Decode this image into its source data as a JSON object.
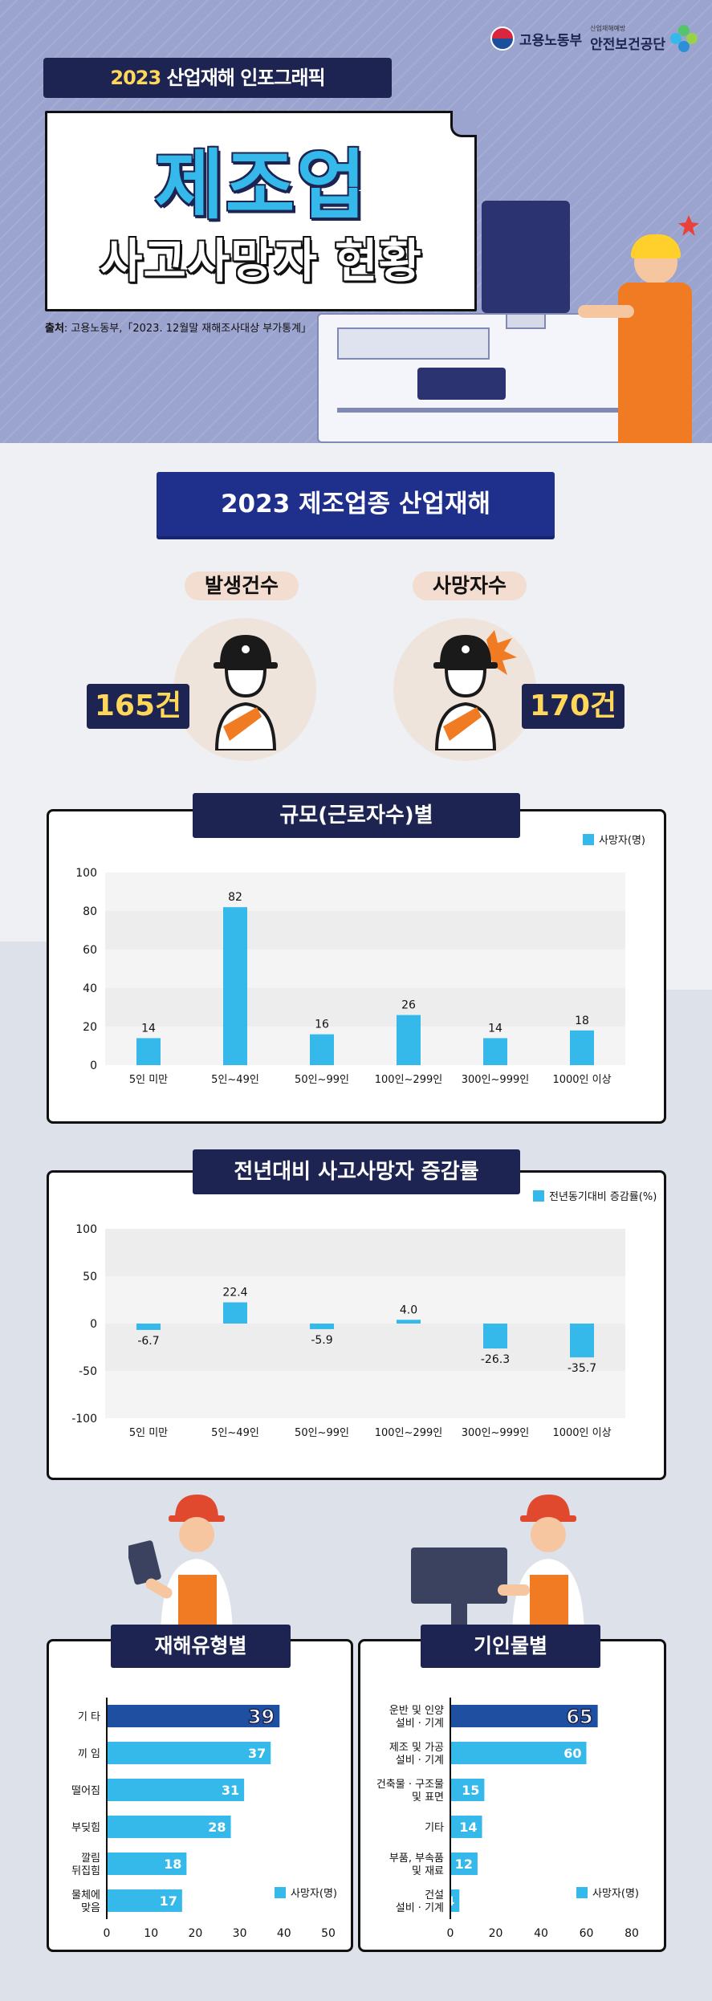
{
  "header": {
    "tag_year": "2023",
    "tag_text": "산업재해 인포그래픽",
    "title_line1": "제조업",
    "title_line2": "사고사망자 현황",
    "source_label": "출처",
    "source_text": ": 고용노동부,「2023. 12월말 재해조사대상 부가통계」",
    "logo_moel": "고용노동부",
    "logo_kosha_small": "산업재해예방",
    "logo_kosha": "안전보건공단"
  },
  "summary": {
    "section_title": "2023 제조업종 산업재해",
    "incidents_label": "발생건수",
    "incidents_value": "165건",
    "deaths_label": "사망자수",
    "deaths_value": "170건"
  },
  "colors": {
    "navy": "#1d2451",
    "blue": "#35b8ea",
    "dark_blue": "#1f4fa0",
    "yellow": "#ffd85a",
    "orange": "#f07b22"
  },
  "chart_data": [
    {
      "type": "bar",
      "title": "규모(근로자수)별",
      "legend": "사망자(명)",
      "categories": [
        "5인 미만",
        "5인~49인",
        "50인~99인",
        "100인~299인",
        "300인~999인",
        "1000인 이상"
      ],
      "values": [
        14,
        82,
        16,
        26,
        14,
        18
      ],
      "value_labels": [
        "14",
        "82",
        "16",
        "26",
        "14",
        "18"
      ],
      "ylim": [
        0,
        100
      ],
      "yticks": [
        0,
        20,
        40,
        60,
        80,
        100
      ],
      "ytick_labels": [
        "0",
        "20",
        "40",
        "60",
        "80",
        "100"
      ],
      "legend_position": "top-right"
    },
    {
      "type": "bar",
      "title": "전년대비 사고사망자 증감률",
      "legend": "전년동기대비 증감률(%)",
      "categories": [
        "5인 미만",
        "5인~49인",
        "50인~99인",
        "100인~299인",
        "300인~999인",
        "1000인 이상"
      ],
      "values": [
        -6.7,
        22.4,
        -5.9,
        4.0,
        -26.3,
        -35.7
      ],
      "value_labels": [
        "-6.7",
        "22.4",
        "-5.9",
        "4.0",
        "-26.3",
        "-35.7"
      ],
      "ylim": [
        -100,
        100
      ],
      "yticks": [
        -100,
        -50,
        0,
        50,
        100
      ],
      "ytick_labels": [
        "-100",
        "-50",
        "0",
        "50",
        "100"
      ],
      "legend_position": "top-right"
    },
    {
      "type": "bar",
      "orientation": "horizontal",
      "title": "재해유형별",
      "legend": "사망자(명)",
      "categories": [
        "기 타",
        "끼 임",
        "떨어짐",
        "부딪힘",
        "깔림\n뒤집힘",
        "물체에\n맞음"
      ],
      "values": [
        39,
        37,
        31,
        28,
        18,
        17
      ],
      "value_labels": [
        "39",
        "37",
        "31",
        "28",
        "18",
        "17"
      ],
      "xlim": [
        0,
        50
      ],
      "xticks": [
        0,
        10,
        20,
        30,
        40,
        50
      ],
      "xtick_labels": [
        "0",
        "10",
        "20",
        "30",
        "40",
        "50"
      ],
      "highlight_index": 0,
      "legend_position": "bottom-right"
    },
    {
      "type": "bar",
      "orientation": "horizontal",
      "title": "기인물별",
      "legend": "사망자(명)",
      "categories": [
        "운반 및 인양\n설비 · 기계",
        "제조 및 가공\n설비 · 기계",
        "건축물 · 구조물\n및 표면",
        "기타",
        "부품, 부속품\n및 재료",
        "건설\n설비 · 기계"
      ],
      "values": [
        65,
        60,
        15,
        14,
        12,
        4
      ],
      "value_labels": [
        "65",
        "60",
        "15",
        "14",
        "12",
        "4"
      ],
      "xlim": [
        0,
        80
      ],
      "xticks": [
        0,
        20,
        40,
        60,
        80
      ],
      "xtick_labels": [
        "0",
        "20",
        "40",
        "60",
        "80"
      ],
      "highlight_index": 0,
      "legend_position": "bottom-right"
    }
  ]
}
